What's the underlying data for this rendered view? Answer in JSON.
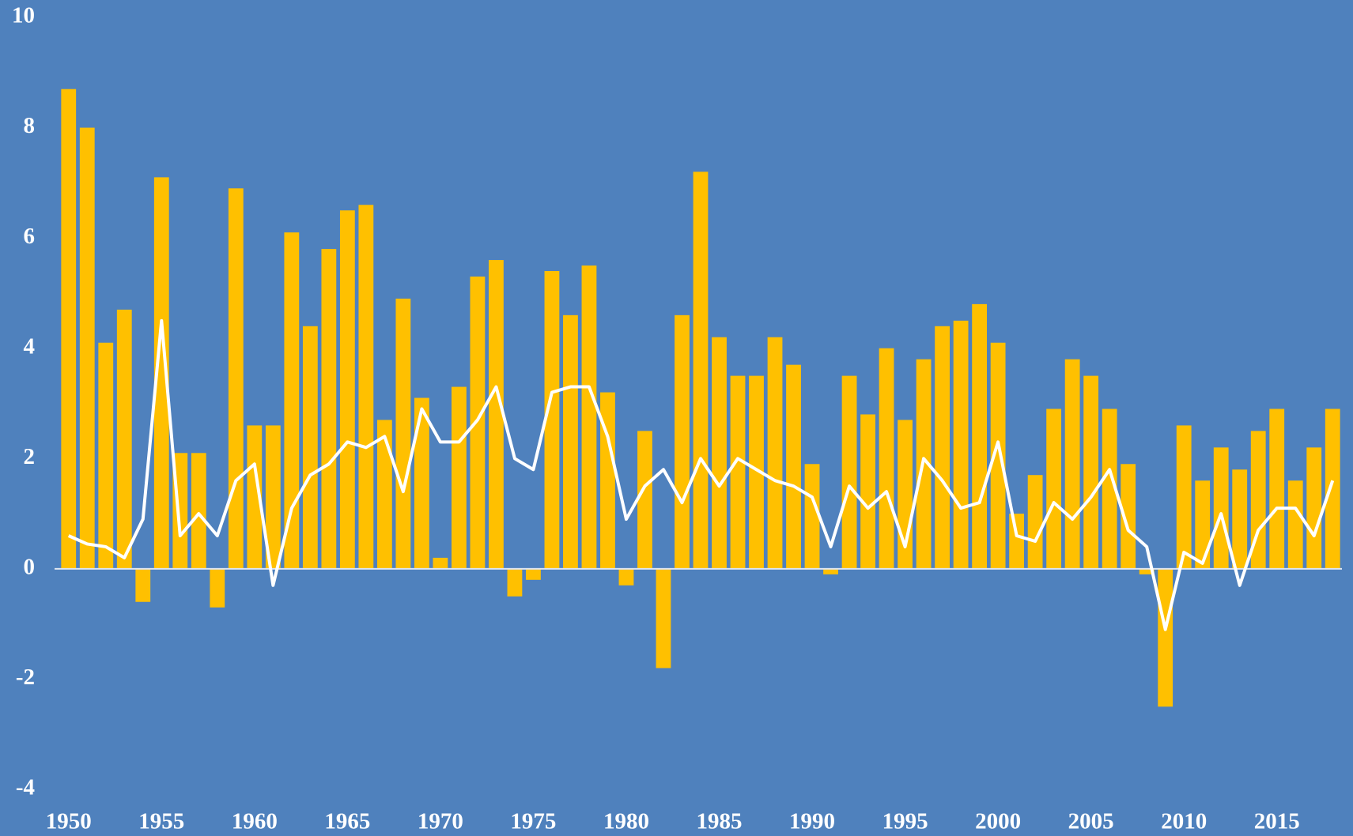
{
  "chart_data": {
    "type": "bar",
    "x": [
      1950,
      1951,
      1952,
      1953,
      1954,
      1955,
      1956,
      1957,
      1958,
      1959,
      1960,
      1961,
      1962,
      1963,
      1964,
      1965,
      1966,
      1967,
      1968,
      1969,
      1970,
      1971,
      1972,
      1973,
      1974,
      1975,
      1976,
      1977,
      1978,
      1979,
      1980,
      1981,
      1982,
      1983,
      1984,
      1985,
      1986,
      1987,
      1988,
      1989,
      1990,
      1991,
      1992,
      1993,
      1994,
      1995,
      1996,
      1997,
      1998,
      1999,
      2000,
      2001,
      2002,
      2003,
      2004,
      2005,
      2006,
      2007,
      2008,
      2009,
      2010,
      2011,
      2012,
      2013,
      2014,
      2015,
      2016,
      2017,
      2018
    ],
    "series": [
      {
        "type": "bar",
        "color": "#ffc000",
        "values": [
          8.7,
          8.0,
          4.1,
          4.7,
          -0.6,
          7.1,
          2.1,
          2.1,
          -0.7,
          6.9,
          2.6,
          2.6,
          6.1,
          4.4,
          5.8,
          6.5,
          6.6,
          2.7,
          4.9,
          3.1,
          0.2,
          3.3,
          5.3,
          5.6,
          -0.5,
          -0.2,
          5.4,
          4.6,
          5.5,
          3.2,
          -0.3,
          2.5,
          -1.8,
          4.6,
          7.2,
          4.2,
          3.5,
          3.5,
          4.2,
          3.7,
          1.9,
          -0.1,
          3.5,
          2.8,
          4.0,
          2.7,
          3.8,
          4.4,
          4.5,
          4.8,
          4.1,
          1.0,
          1.7,
          2.9,
          3.8,
          3.5,
          2.9,
          1.9,
          -0.1,
          -2.5,
          2.6,
          1.6,
          2.2,
          1.8,
          2.5,
          2.9,
          1.6,
          2.2,
          2.9
        ]
      },
      {
        "type": "line",
        "color": "#ffffff",
        "values": [
          0.6,
          0.45,
          0.4,
          0.2,
          0.9,
          4.5,
          0.6,
          1.0,
          0.6,
          1.6,
          1.9,
          -0.3,
          1.1,
          1.7,
          1.9,
          2.3,
          2.2,
          2.4,
          1.4,
          2.9,
          2.3,
          2.3,
          2.7,
          3.3,
          2.0,
          1.8,
          3.2,
          3.3,
          3.3,
          2.4,
          0.9,
          1.5,
          1.8,
          1.2,
          2.0,
          1.5,
          2.0,
          1.8,
          1.6,
          1.5,
          1.3,
          0.4,
          1.5,
          1.1,
          1.4,
          0.4,
          2.0,
          1.6,
          1.1,
          1.2,
          2.3,
          0.6,
          0.5,
          1.2,
          0.9,
          1.3,
          1.8,
          0.7,
          0.4,
          -1.1,
          0.3,
          0.1,
          1.0,
          -0.3,
          0.7,
          1.1,
          1.1,
          0.6,
          1.6
        ]
      }
    ],
    "xlim": [
      1949.5,
      2018.5
    ],
    "xticks": [
      1950,
      1955,
      1960,
      1965,
      1970,
      1975,
      1980,
      1985,
      1990,
      1995,
      2000,
      2005,
      2010,
      2015
    ],
    "ylim": [
      -4,
      10
    ],
    "yticks": [
      -4,
      -2,
      0,
      2,
      4,
      6,
      8,
      10
    ],
    "grid": false
  }
}
